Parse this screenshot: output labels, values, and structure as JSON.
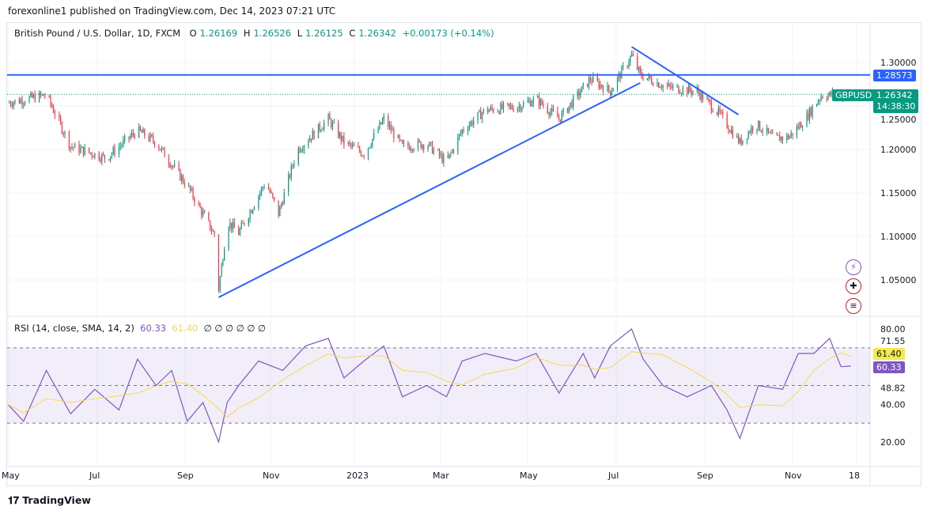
{
  "header": {
    "published": "forexonline1 published on TradingView.com, Dec 14, 2023 07:21 UTC"
  },
  "legend": {
    "symbol": "British Pound / U.S. Dollar, 1D, FXCM",
    "o_label": "O",
    "o": "1.26169",
    "h_label": "H",
    "h": "1.26526",
    "l_label": "L",
    "l": "1.26125",
    "c_label": "C",
    "c": "1.26342",
    "change": "+0.00173 (+0.14%)"
  },
  "rsi_legend": {
    "label": "RSI (14, close, SMA, 14, 2)",
    "rsi": "60.33",
    "sma": "61.40",
    "empty": "∅ ∅ ∅ ∅ ∅ ∅"
  },
  "price_labels": {
    "line": "1.28573",
    "symbol": "GBPUSD",
    "last": "1.26342",
    "countdown": "14:38:30",
    "rsi": "60.33",
    "sma": "61.40"
  },
  "colors": {
    "up": "#089981",
    "down": "#f23645",
    "line": "#2962ff",
    "rsi": "#7e57c2",
    "sma": "#f5d94e"
  },
  "brand": "TradingView",
  "icons": [
    "lightning-icon",
    "uk-flag-icon",
    "us-flag-icon"
  ],
  "chart_data": [
    {
      "type": "candlestick",
      "title": "British Pound / U.S. Dollar, 1D, FXCM",
      "ylim": [
        1.02,
        1.32
      ],
      "y_ticks": [
        "1.30000",
        "1.25000",
        "1.20000",
        "1.15000",
        "1.10000",
        "1.05000"
      ],
      "x_ticks": [
        "May",
        "Jul",
        "Sep",
        "Nov",
        "2023",
        "Mar",
        "May",
        "Jul",
        "Sep",
        "Nov",
        "18"
      ],
      "closes": [
        [
          "2022-05-01",
          1.2536
        ],
        [
          "2022-05-28",
          1.2627
        ],
        [
          "2022-06-14",
          1.2036
        ],
        [
          "2022-07-09",
          1.19
        ],
        [
          "2022-07-31",
          1.222
        ],
        [
          "2022-08-13",
          1.208
        ],
        [
          "2022-09-04",
          1.158
        ],
        [
          "2022-09-24",
          1.099
        ],
        [
          "2022-09-26",
          1.04
        ],
        [
          "2022-10-02",
          1.117
        ],
        [
          "2022-10-10",
          1.104
        ],
        [
          "2022-10-29",
          1.163
        ],
        [
          "2022-11-07",
          1.126
        ],
        [
          "2022-11-20",
          1.199
        ],
        [
          "2022-12-12",
          1.235
        ],
        [
          "2022-12-23",
          1.208
        ],
        [
          "2023-01-06",
          1.195
        ],
        [
          "2023-01-20",
          1.235
        ],
        [
          "2023-02-02",
          1.203
        ],
        [
          "2023-02-19",
          1.207
        ],
        [
          "2023-03-05",
          1.185
        ],
        [
          "2023-03-16",
          1.222
        ],
        [
          "2023-04-01",
          1.245
        ],
        [
          "2023-04-23",
          1.249
        ],
        [
          "2023-05-07",
          1.258
        ],
        [
          "2023-05-23",
          1.235
        ],
        [
          "2023-06-14",
          1.281
        ],
        [
          "2023-06-28",
          1.267
        ],
        [
          "2023-07-13",
          1.308
        ],
        [
          "2023-07-19",
          1.286
        ],
        [
          "2023-08-06",
          1.272
        ],
        [
          "2023-08-28",
          1.267
        ],
        [
          "2023-09-13",
          1.24
        ],
        [
          "2023-09-27",
          1.208
        ],
        [
          "2023-10-08",
          1.23
        ],
        [
          "2023-10-21",
          1.212
        ],
        [
          "2023-11-01",
          1.215
        ],
        [
          "2023-11-12",
          1.235
        ],
        [
          "2023-11-23",
          1.262
        ],
        [
          "2023-12-14",
          1.26342
        ]
      ],
      "horizontal_line": 1.28573,
      "trendlines": [
        [
          [
            "2022-09-26",
            1.03
          ],
          [
            "2023-07-19",
            1.2765
          ]
        ],
        [
          [
            "2023-07-13",
            1.318
          ],
          [
            "2023-09-26",
            1.24
          ]
        ]
      ]
    },
    {
      "type": "line",
      "title": "RSI (14, close, SMA, 14, 2)",
      "ylim": [
        15,
        85
      ],
      "y_ticks": [
        "80.00",
        "71.55",
        "48.82",
        "40.00",
        "20.00"
      ],
      "bands": [
        70,
        50,
        30
      ],
      "series": [
        {
          "name": "RSI",
          "values": [
            [
              "2022-05-01",
              40
            ],
            [
              "2022-05-12",
              31
            ],
            [
              "2022-05-28",
              58
            ],
            [
              "2022-06-14",
              35
            ],
            [
              "2022-07-01",
              48
            ],
            [
              "2022-07-18",
              37
            ],
            [
              "2022-07-31",
              64
            ],
            [
              "2022-08-13",
              50
            ],
            [
              "2022-08-24",
              58
            ],
            [
              "2022-09-04",
              31
            ],
            [
              "2022-09-15",
              41
            ],
            [
              "2022-09-26",
              20
            ],
            [
              "2022-10-02",
              41
            ],
            [
              "2022-10-10",
              50
            ],
            [
              "2022-10-24",
              63
            ],
            [
              "2022-11-10",
              58
            ],
            [
              "2022-11-26",
              71
            ],
            [
              "2022-12-12",
              75
            ],
            [
              "2022-12-23",
              54
            ],
            [
              "2023-01-06",
              63
            ],
            [
              "2023-01-20",
              71
            ],
            [
              "2023-02-02",
              44
            ],
            [
              "2023-02-19",
              50
            ],
            [
              "2023-03-05",
              44
            ],
            [
              "2023-03-16",
              63
            ],
            [
              "2023-04-01",
              67
            ],
            [
              "2023-04-23",
              63
            ],
            [
              "2023-05-07",
              67
            ],
            [
              "2023-05-23",
              46
            ],
            [
              "2023-06-09",
              67
            ],
            [
              "2023-06-17",
              54
            ],
            [
              "2023-06-28",
              71
            ],
            [
              "2023-07-13",
              80
            ],
            [
              "2023-07-21",
              64
            ],
            [
              "2023-08-04",
              50
            ],
            [
              "2023-08-21",
              44
            ],
            [
              "2023-09-07",
              50
            ],
            [
              "2023-09-18",
              37
            ],
            [
              "2023-09-27",
              22
            ],
            [
              "2023-10-10",
              50
            ],
            [
              "2023-10-27",
              48
            ],
            [
              "2023-11-07",
              67
            ],
            [
              "2023-11-18",
              67
            ],
            [
              "2023-11-29",
              75
            ],
            [
              "2023-12-07",
              60
            ],
            [
              "2023-12-14",
              60.33
            ]
          ]
        },
        {
          "name": "SMA",
          "smoothing": 14
        }
      ]
    }
  ]
}
